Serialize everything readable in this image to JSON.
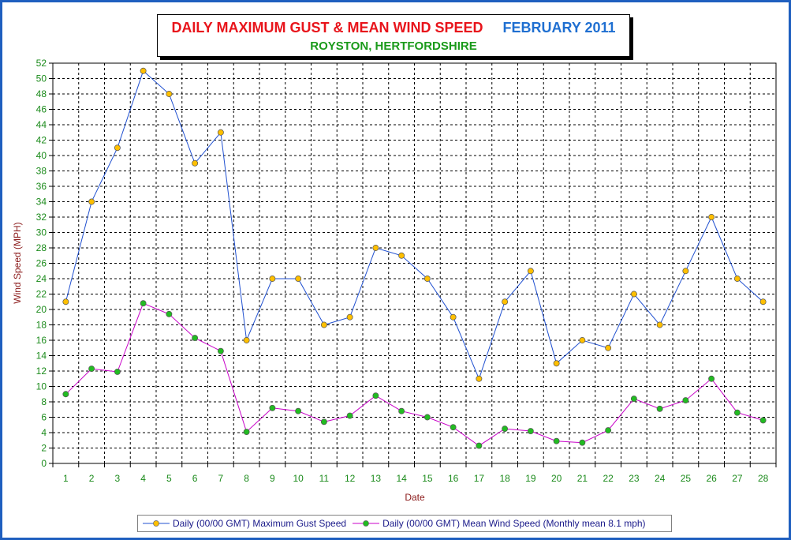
{
  "title": {
    "main": "DAILY MAXIMUM GUST & MEAN WIND SPEED",
    "period": "FEBRUARY 2011",
    "location": "ROYSTON, HERTFORDSHIRE"
  },
  "colors": {
    "gust_line": "#2050d0",
    "mean_line": "#c800c8",
    "gust_marker": "#ffbf00",
    "mean_marker": "#22bb22",
    "axis_text": "#1a8a1a",
    "axis_label": "#8b1a1a",
    "frame": "#1f5fbf"
  },
  "legend": {
    "gust_label": "Daily (00/00 GMT) Maximum Gust Speed",
    "mean_label": "Daily (00/00 GMT) Mean Wind Speed (Monthly mean 8.1 mph)"
  },
  "chart_data": {
    "type": "line",
    "xlabel": "Date",
    "ylabel": "Wind Speed (MPH)",
    "ylim": [
      0,
      52
    ],
    "ytick_step": 2,
    "grid": true,
    "legend_position": "bottom",
    "x": [
      1,
      2,
      3,
      4,
      5,
      6,
      7,
      8,
      9,
      10,
      11,
      12,
      13,
      14,
      15,
      16,
      17,
      18,
      19,
      20,
      21,
      22,
      23,
      24,
      25,
      26,
      27,
      28
    ],
    "series": [
      {
        "name": "Daily (00/00 GMT) Maximum Gust Speed",
        "values": [
          21,
          34,
          41,
          51,
          48,
          39,
          43,
          16,
          24,
          24,
          18,
          19,
          28,
          27,
          24,
          19,
          11,
          21,
          25,
          13,
          16,
          15,
          22,
          18,
          25,
          32,
          24,
          21
        ]
      },
      {
        "name": "Daily (00/00 GMT) Mean Wind Speed (Monthly mean 8.1 mph)",
        "values": [
          9.0,
          12.3,
          11.9,
          20.8,
          19.4,
          16.3,
          14.6,
          4.1,
          7.2,
          6.8,
          5.4,
          6.2,
          8.8,
          6.8,
          6.0,
          4.7,
          2.3,
          4.5,
          4.2,
          2.9,
          2.7,
          4.3,
          8.4,
          7.1,
          8.2,
          11.0,
          6.6,
          5.6
        ]
      }
    ]
  }
}
